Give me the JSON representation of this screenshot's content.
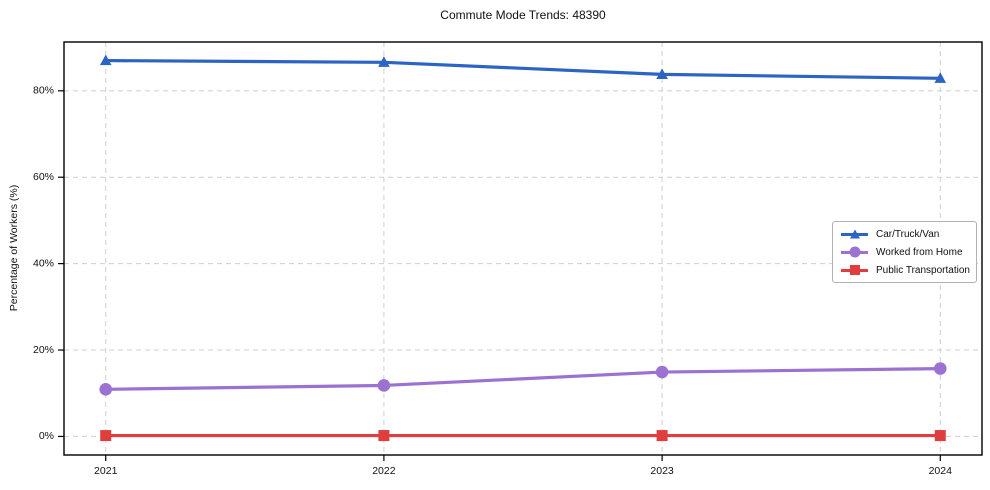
{
  "figure": {
    "title": "Commute Mode Trends: 48390"
  },
  "chart_data": {
    "type": "line",
    "title": "Commute Mode Trends: 48390",
    "xlabel": "",
    "ylabel": "Percentage of Workers (%)",
    "x": [
      2021,
      2022,
      2023,
      2024
    ],
    "x_tick_labels": [
      "2021",
      "2022",
      "2023",
      "2024"
    ],
    "y_ticks": [
      0,
      20,
      40,
      60,
      80
    ],
    "y_tick_labels": [
      "0%",
      "20%",
      "40%",
      "60%",
      "80%"
    ],
    "xlim": [
      2020.85,
      2024.15
    ],
    "ylim": [
      -4.3,
      91.3
    ],
    "grid": true,
    "grid_style": "dashed",
    "legend_position": "center-right",
    "series": [
      {
        "name": "Car/Truck/Van",
        "marker": "triangle",
        "color": "#2b64c5",
        "values": [
          87.0,
          86.6,
          83.8,
          82.9
        ]
      },
      {
        "name": "Worked from Home",
        "marker": "circle",
        "color": "#9b72d2",
        "values": [
          10.9,
          11.8,
          14.9,
          15.7
        ]
      },
      {
        "name": "Public Transportation",
        "marker": "square",
        "color": "#e03e3e",
        "values": [
          0.2,
          0.2,
          0.2,
          0.2
        ]
      }
    ]
  }
}
